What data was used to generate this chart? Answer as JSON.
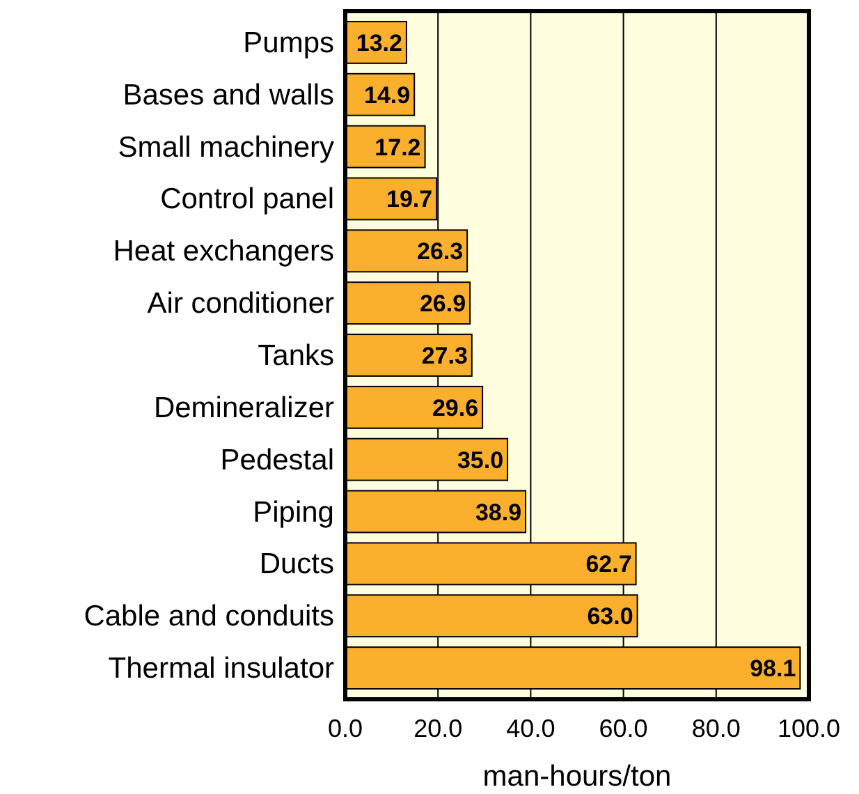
{
  "chart_data": {
    "type": "bar",
    "orientation": "horizontal",
    "xlabel": "man-hours/ton",
    "categories": [
      "Pumps",
      "Bases and walls",
      "Small machinery",
      "Control panel",
      "Heat exchangers",
      "Air conditioner",
      "Tanks",
      "Demineralizer",
      "Pedestal",
      "Piping",
      "Ducts",
      "Cable and conduits",
      "Thermal insulator"
    ],
    "values": [
      13.2,
      14.9,
      17.2,
      19.7,
      26.3,
      26.9,
      27.3,
      29.6,
      35.0,
      38.9,
      62.7,
      63.0,
      98.1
    ],
    "value_labels": [
      "13.2",
      "14.9",
      "17.2",
      "19.7",
      "26.3",
      "26.9",
      "27.3",
      "29.6",
      "35.0",
      "38.9",
      "62.7",
      "63.0",
      "98.1"
    ],
    "color": "#fbb02d",
    "xlim": [
      0,
      100
    ],
    "xticks": [
      {
        "value": 0,
        "label": "0.0"
      },
      {
        "value": 20,
        "label": "20.0"
      },
      {
        "value": 40,
        "label": "40.0"
      },
      {
        "value": 60,
        "label": "60.0"
      },
      {
        "value": 80,
        "label": "80.0"
      },
      {
        "value": 100,
        "label": "100.0"
      }
    ],
    "grid": "x"
  }
}
